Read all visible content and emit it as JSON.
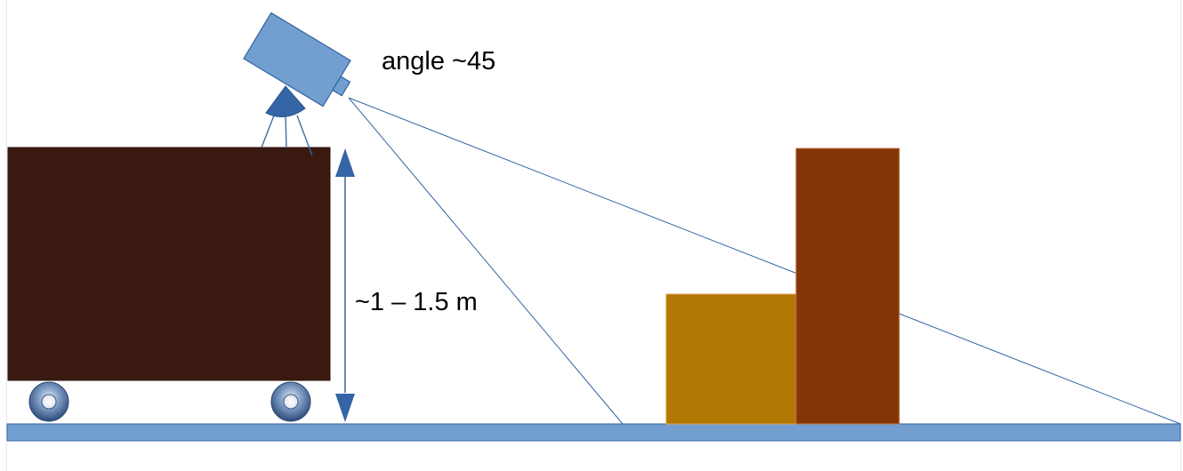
{
  "labels": {
    "angle": "angle ~45",
    "height": "~1 – 1.5 m"
  },
  "colors": {
    "cart_body": "#3a1a10",
    "wheel": "#6f8fb5",
    "camera": "#729fcf",
    "mount": "#3465a4",
    "floor": "#729fcf",
    "box_short": "#b37703",
    "box_tall": "#833509",
    "line": "#3465a4",
    "text": "#000000"
  },
  "icons": {
    "camera": "camera-icon",
    "wheel": "wheel-icon",
    "height_arrow": "double-arrow-icon"
  }
}
